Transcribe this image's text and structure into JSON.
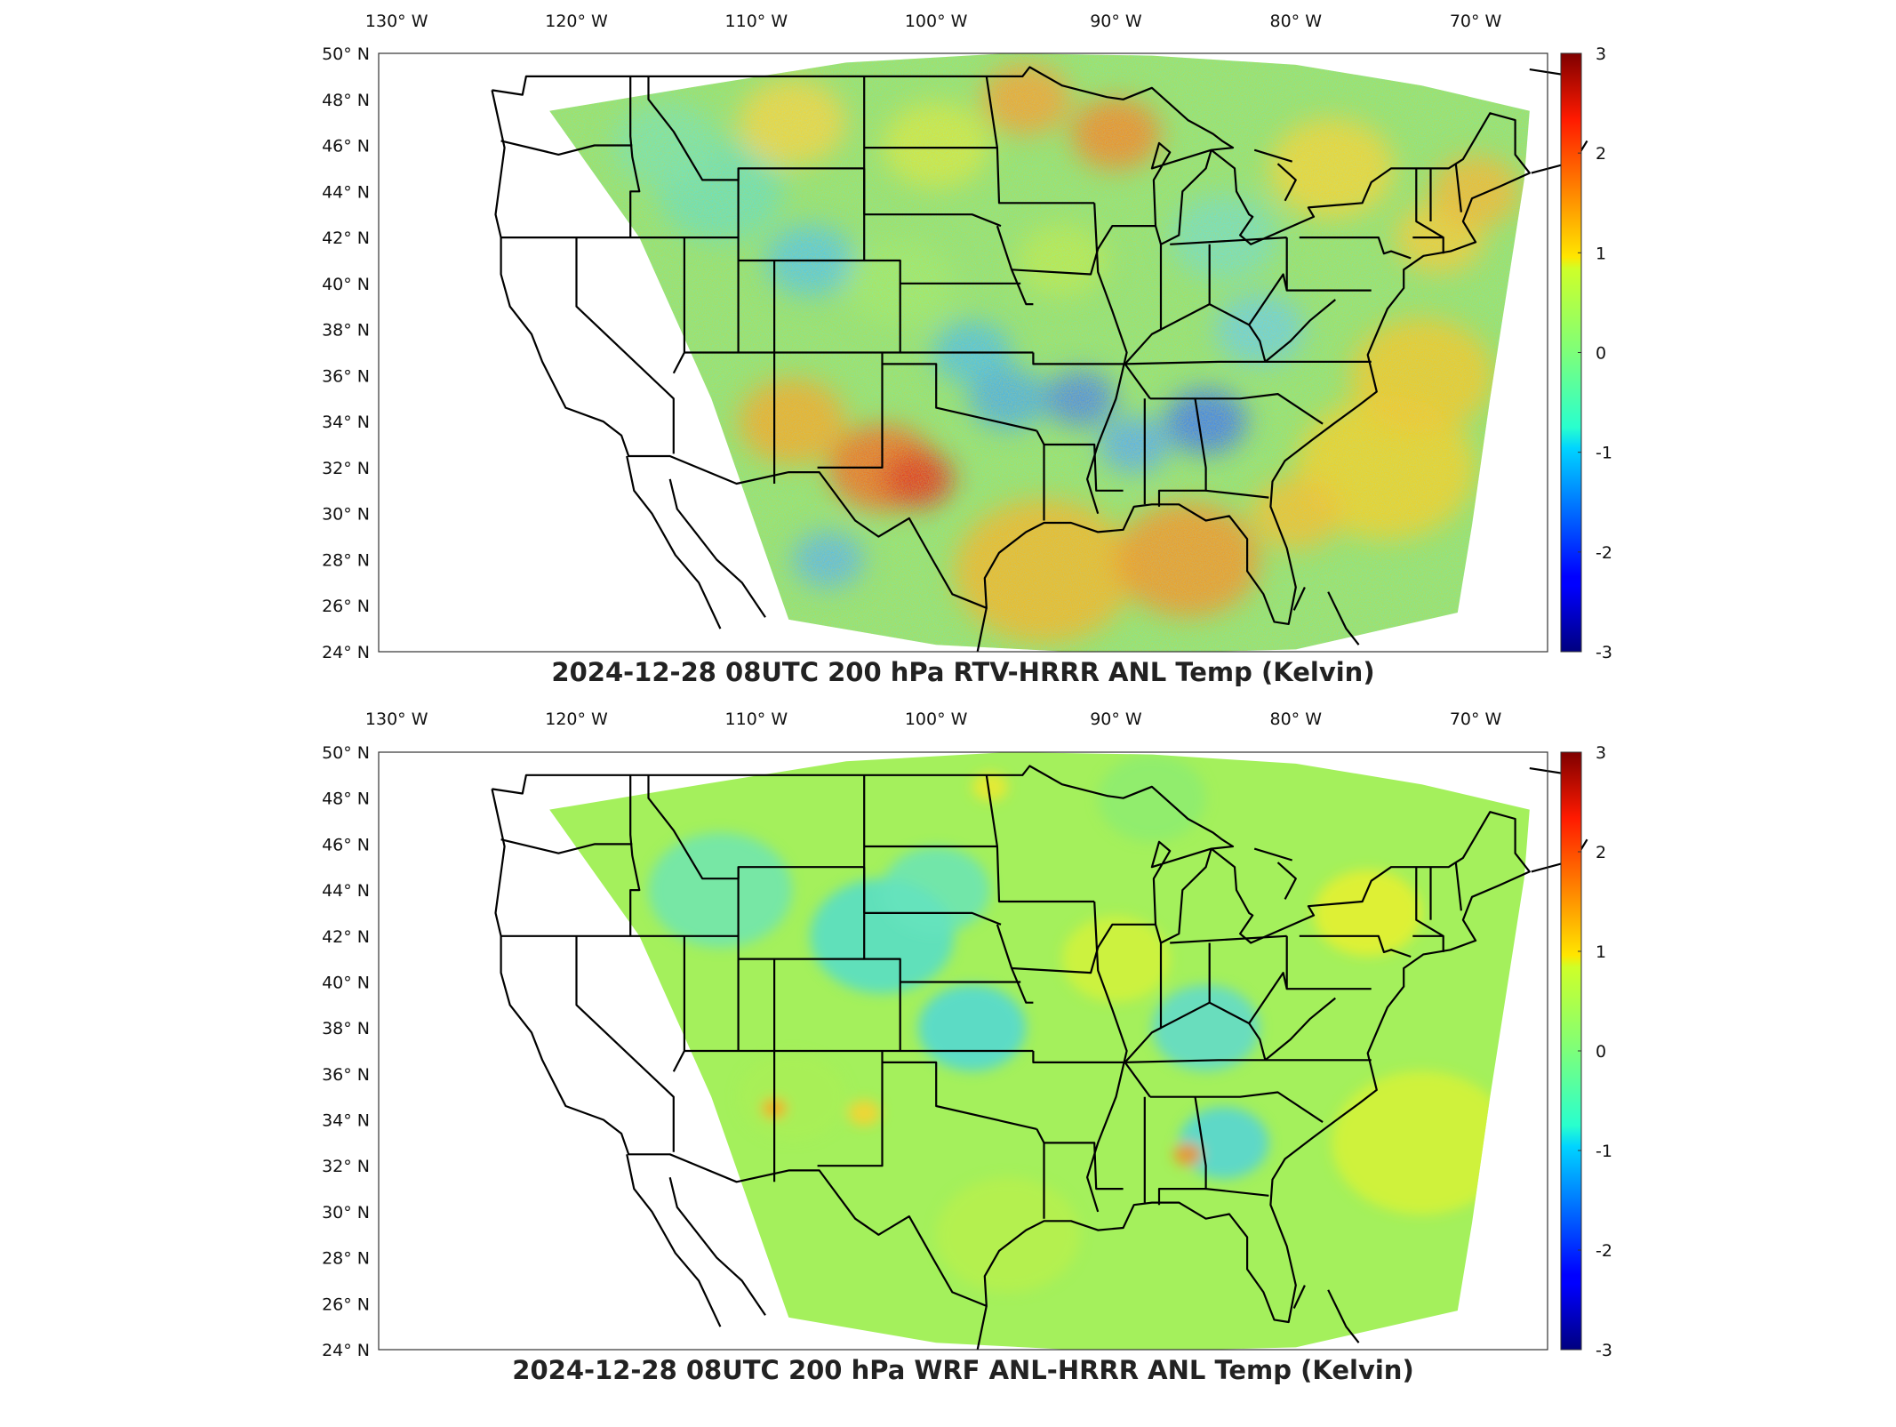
{
  "panels": [
    {
      "title": "2024-12-28 08UTC 200 hPa RTV-HRRR ANL Temp (Kelvin)",
      "field": "rtv"
    },
    {
      "title": "2024-12-28 08UTC 200 hPa WRF ANL-HRRR ANL Temp (Kelvin)",
      "field": "wrf"
    }
  ],
  "axes": {
    "lon_ticks": [
      "130° W",
      "120° W",
      "110° W",
      "100° W",
      "90° W",
      "80° W",
      "70° W"
    ],
    "lat_ticks": [
      "50° N",
      "48° N",
      "46° N",
      "44° N",
      "42° N",
      "40° N",
      "38° N",
      "36° N",
      "34° N",
      "32° N",
      "30° N",
      "28° N",
      "26° N",
      "24° N"
    ],
    "lon_range": [
      -131,
      -66
    ],
    "lat_range": [
      24,
      50
    ]
  },
  "colorbar": {
    "ticks": [
      "3",
      "2",
      "1",
      "0",
      "-1",
      "-2",
      "-3"
    ],
    "range": [
      -3,
      3
    ],
    "colormap": "jet"
  },
  "colors": {
    "background": "#ffffff",
    "border": "#000000"
  }
}
